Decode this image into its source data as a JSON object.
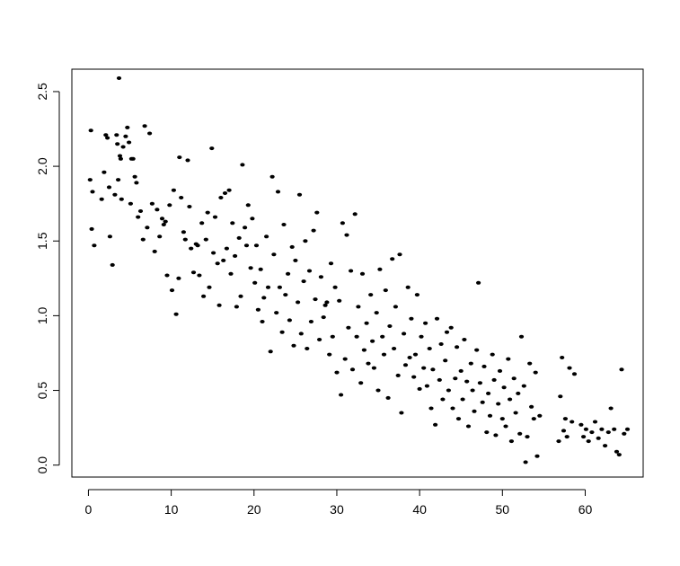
{
  "chart_data": {
    "type": "scatter",
    "title": "",
    "xlabel": "",
    "ylabel": "",
    "xlim": [
      -2,
      67
    ],
    "ylim": [
      -0.08,
      2.65
    ],
    "grid": false,
    "x_ticks": [
      {
        "value": 0,
        "label": "0"
      },
      {
        "value": 10,
        "label": "10"
      },
      {
        "value": 20,
        "label": "20"
      },
      {
        "value": 30,
        "label": "30"
      },
      {
        "value": 40,
        "label": "40"
      },
      {
        "value": 50,
        "label": "50"
      },
      {
        "value": 60,
        "label": "60"
      }
    ],
    "y_ticks": [
      {
        "value": 0.0,
        "label": "0.0"
      },
      {
        "value": 0.5,
        "label": "0.5"
      },
      {
        "value": 1.0,
        "label": "1.0"
      },
      {
        "value": 1.5,
        "label": "1.5"
      },
      {
        "value": 2.0,
        "label": "2.0"
      },
      {
        "value": 2.5,
        "label": "2.5"
      }
    ],
    "points": [
      [
        0.3,
        2.24
      ],
      [
        0.2,
        1.91
      ],
      [
        0.5,
        1.83
      ],
      [
        0.4,
        1.58
      ],
      [
        0.7,
        1.47
      ],
      [
        1.6,
        1.78
      ],
      [
        1.9,
        1.96
      ],
      [
        2.1,
        2.21
      ],
      [
        2.3,
        2.19
      ],
      [
        2.5,
        1.86
      ],
      [
        2.6,
        1.53
      ],
      [
        2.9,
        1.34
      ],
      [
        3.2,
        1.81
      ],
      [
        3.4,
        2.21
      ],
      [
        3.5,
        2.15
      ],
      [
        3.6,
        1.91
      ],
      [
        3.8,
        2.07
      ],
      [
        3.9,
        2.05
      ],
      [
        4.0,
        1.78
      ],
      [
        4.2,
        2.13
      ],
      [
        3.7,
        2.59
      ],
      [
        4.5,
        2.2
      ],
      [
        4.7,
        2.26
      ],
      [
        4.9,
        2.16
      ],
      [
        5.1,
        1.75
      ],
      [
        5.2,
        2.05
      ],
      [
        5.4,
        2.05
      ],
      [
        5.6,
        1.93
      ],
      [
        5.8,
        1.89
      ],
      [
        6.0,
        1.66
      ],
      [
        6.3,
        1.7
      ],
      [
        6.6,
        1.51
      ],
      [
        6.8,
        2.27
      ],
      [
        7.1,
        1.59
      ],
      [
        7.4,
        2.22
      ],
      [
        7.7,
        1.75
      ],
      [
        8.0,
        1.43
      ],
      [
        8.3,
        1.71
      ],
      [
        8.6,
        1.53
      ],
      [
        8.9,
        1.65
      ],
      [
        9.1,
        1.61
      ],
      [
        9.3,
        1.63
      ],
      [
        9.5,
        1.27
      ],
      [
        9.8,
        1.74
      ],
      [
        10.1,
        1.17
      ],
      [
        10.3,
        1.84
      ],
      [
        10.6,
        1.01
      ],
      [
        10.9,
        1.25
      ],
      [
        11.0,
        2.06
      ],
      [
        11.2,
        1.79
      ],
      [
        11.5,
        1.56
      ],
      [
        11.7,
        1.51
      ],
      [
        12.0,
        2.04
      ],
      [
        12.2,
        1.73
      ],
      [
        12.4,
        1.45
      ],
      [
        12.7,
        1.29
      ],
      [
        13.0,
        1.48
      ],
      [
        13.2,
        1.47
      ],
      [
        13.4,
        1.27
      ],
      [
        13.7,
        1.62
      ],
      [
        13.9,
        1.13
      ],
      [
        14.2,
        1.51
      ],
      [
        14.4,
        1.69
      ],
      [
        14.6,
        1.19
      ],
      [
        14.9,
        2.12
      ],
      [
        15.1,
        1.42
      ],
      [
        15.3,
        1.66
      ],
      [
        15.6,
        1.35
      ],
      [
        15.8,
        1.07
      ],
      [
        16.0,
        1.79
      ],
      [
        16.3,
        1.37
      ],
      [
        16.5,
        1.82
      ],
      [
        16.7,
        1.45
      ],
      [
        17.0,
        1.84
      ],
      [
        17.2,
        1.28
      ],
      [
        17.4,
        1.62
      ],
      [
        17.7,
        1.4
      ],
      [
        17.9,
        1.06
      ],
      [
        18.2,
        1.52
      ],
      [
        18.4,
        1.13
      ],
      [
        18.6,
        2.01
      ],
      [
        18.9,
        1.59
      ],
      [
        19.1,
        1.47
      ],
      [
        19.3,
        1.74
      ],
      [
        19.6,
        1.32
      ],
      [
        19.8,
        1.65
      ],
      [
        20.1,
        1.22
      ],
      [
        20.3,
        1.47
      ],
      [
        20.5,
        1.04
      ],
      [
        20.8,
        1.31
      ],
      [
        21.0,
        0.96
      ],
      [
        21.2,
        1.12
      ],
      [
        21.5,
        1.53
      ],
      [
        21.7,
        1.19
      ],
      [
        22.0,
        0.76
      ],
      [
        22.2,
        1.93
      ],
      [
        22.4,
        1.41
      ],
      [
        22.7,
        1.02
      ],
      [
        22.9,
        1.83
      ],
      [
        23.1,
        1.19
      ],
      [
        23.4,
        0.89
      ],
      [
        23.6,
        1.61
      ],
      [
        23.8,
        1.14
      ],
      [
        24.1,
        1.28
      ],
      [
        24.3,
        0.97
      ],
      [
        24.6,
        1.46
      ],
      [
        24.8,
        0.8
      ],
      [
        25.0,
        1.37
      ],
      [
        25.3,
        1.09
      ],
      [
        25.5,
        1.81
      ],
      [
        25.7,
        0.88
      ],
      [
        26.0,
        1.23
      ],
      [
        26.2,
        1.5
      ],
      [
        26.4,
        0.78
      ],
      [
        26.7,
        1.3
      ],
      [
        26.9,
        0.96
      ],
      [
        27.2,
        1.57
      ],
      [
        27.4,
        1.11
      ],
      [
        27.6,
        1.69
      ],
      [
        27.9,
        0.84
      ],
      [
        28.1,
        1.26
      ],
      [
        28.4,
        0.99
      ],
      [
        28.6,
        1.07
      ],
      [
        28.8,
        1.09
      ],
      [
        29.1,
        0.74
      ],
      [
        29.3,
        1.35
      ],
      [
        29.5,
        0.86
      ],
      [
        29.8,
        1.19
      ],
      [
        30.0,
        0.62
      ],
      [
        30.3,
        1.1
      ],
      [
        30.5,
        0.47
      ],
      [
        30.7,
        1.62
      ],
      [
        31.0,
        0.71
      ],
      [
        31.2,
        1.54
      ],
      [
        31.4,
        0.92
      ],
      [
        31.7,
        1.3
      ],
      [
        31.9,
        0.64
      ],
      [
        32.2,
        1.68
      ],
      [
        32.4,
        0.86
      ],
      [
        32.6,
        1.06
      ],
      [
        32.9,
        0.55
      ],
      [
        33.1,
        1.28
      ],
      [
        33.3,
        0.77
      ],
      [
        33.6,
        0.95
      ],
      [
        33.8,
        0.68
      ],
      [
        34.1,
        1.14
      ],
      [
        34.3,
        0.83
      ],
      [
        34.5,
        0.65
      ],
      [
        34.8,
        1.02
      ],
      [
        35.0,
        0.5
      ],
      [
        35.2,
        1.31
      ],
      [
        35.5,
        0.86
      ],
      [
        35.7,
        0.74
      ],
      [
        35.9,
        1.17
      ],
      [
        36.2,
        0.45
      ],
      [
        36.4,
        0.93
      ],
      [
        36.7,
        1.38
      ],
      [
        36.9,
        0.78
      ],
      [
        37.1,
        1.06
      ],
      [
        37.4,
        0.6
      ],
      [
        37.6,
        1.41
      ],
      [
        37.8,
        0.35
      ],
      [
        38.1,
        0.88
      ],
      [
        38.3,
        0.67
      ],
      [
        38.6,
        1.19
      ],
      [
        38.8,
        0.72
      ],
      [
        39.0,
        0.98
      ],
      [
        39.3,
        0.59
      ],
      [
        39.5,
        0.74
      ],
      [
        39.7,
        1.14
      ],
      [
        40.0,
        0.51
      ],
      [
        40.2,
        0.86
      ],
      [
        40.5,
        0.65
      ],
      [
        40.7,
        0.95
      ],
      [
        40.9,
        0.53
      ],
      [
        41.2,
        0.78
      ],
      [
        41.4,
        0.38
      ],
      [
        41.6,
        0.64
      ],
      [
        41.9,
        0.27
      ],
      [
        42.1,
        0.98
      ],
      [
        42.4,
        0.57
      ],
      [
        42.6,
        0.81
      ],
      [
        42.8,
        0.44
      ],
      [
        43.1,
        0.7
      ],
      [
        43.3,
        0.89
      ],
      [
        43.5,
        0.5
      ],
      [
        43.8,
        0.92
      ],
      [
        44.0,
        0.38
      ],
      [
        44.3,
        0.58
      ],
      [
        44.5,
        0.79
      ],
      [
        44.7,
        0.31
      ],
      [
        45.0,
        0.63
      ],
      [
        45.2,
        0.44
      ],
      [
        45.4,
        0.84
      ],
      [
        45.7,
        0.56
      ],
      [
        45.9,
        0.26
      ],
      [
        46.2,
        0.68
      ],
      [
        46.4,
        0.5
      ],
      [
        46.6,
        0.36
      ],
      [
        46.9,
        0.77
      ],
      [
        47.1,
        1.22
      ],
      [
        47.3,
        0.55
      ],
      [
        47.6,
        0.42
      ],
      [
        47.8,
        0.66
      ],
      [
        48.1,
        0.22
      ],
      [
        48.3,
        0.48
      ],
      [
        48.5,
        0.33
      ],
      [
        48.8,
        0.74
      ],
      [
        49.0,
        0.57
      ],
      [
        49.2,
        0.2
      ],
      [
        49.5,
        0.41
      ],
      [
        49.7,
        0.63
      ],
      [
        50.0,
        0.31
      ],
      [
        50.2,
        0.52
      ],
      [
        50.4,
        0.26
      ],
      [
        50.7,
        0.71
      ],
      [
        50.9,
        0.44
      ],
      [
        51.1,
        0.16
      ],
      [
        51.4,
        0.58
      ],
      [
        51.6,
        0.35
      ],
      [
        51.9,
        0.48
      ],
      [
        52.1,
        0.21
      ],
      [
        52.3,
        0.86
      ],
      [
        52.6,
        0.53
      ],
      [
        52.8,
        0.02
      ],
      [
        53.0,
        0.19
      ],
      [
        53.3,
        0.68
      ],
      [
        53.5,
        0.39
      ],
      [
        53.8,
        0.31
      ],
      [
        54.0,
        0.62
      ],
      [
        54.2,
        0.06
      ],
      [
        54.5,
        0.33
      ],
      [
        56.8,
        0.16
      ],
      [
        57.0,
        0.46
      ],
      [
        57.2,
        0.72
      ],
      [
        57.4,
        0.23
      ],
      [
        57.6,
        0.31
      ],
      [
        57.8,
        0.19
      ],
      [
        58.1,
        0.65
      ],
      [
        58.4,
        0.29
      ],
      [
        58.7,
        0.61
      ],
      [
        59.5,
        0.27
      ],
      [
        59.8,
        0.19
      ],
      [
        60.1,
        0.24
      ],
      [
        60.4,
        0.16
      ],
      [
        60.8,
        0.22
      ],
      [
        61.2,
        0.29
      ],
      [
        61.6,
        0.18
      ],
      [
        62.0,
        0.24
      ],
      [
        62.4,
        0.13
      ],
      [
        62.8,
        0.22
      ],
      [
        63.1,
        0.38
      ],
      [
        63.5,
        0.24
      ],
      [
        63.8,
        0.09
      ],
      [
        64.1,
        0.07
      ],
      [
        64.4,
        0.64
      ],
      [
        64.7,
        0.21
      ],
      [
        65.1,
        0.24
      ]
    ]
  }
}
